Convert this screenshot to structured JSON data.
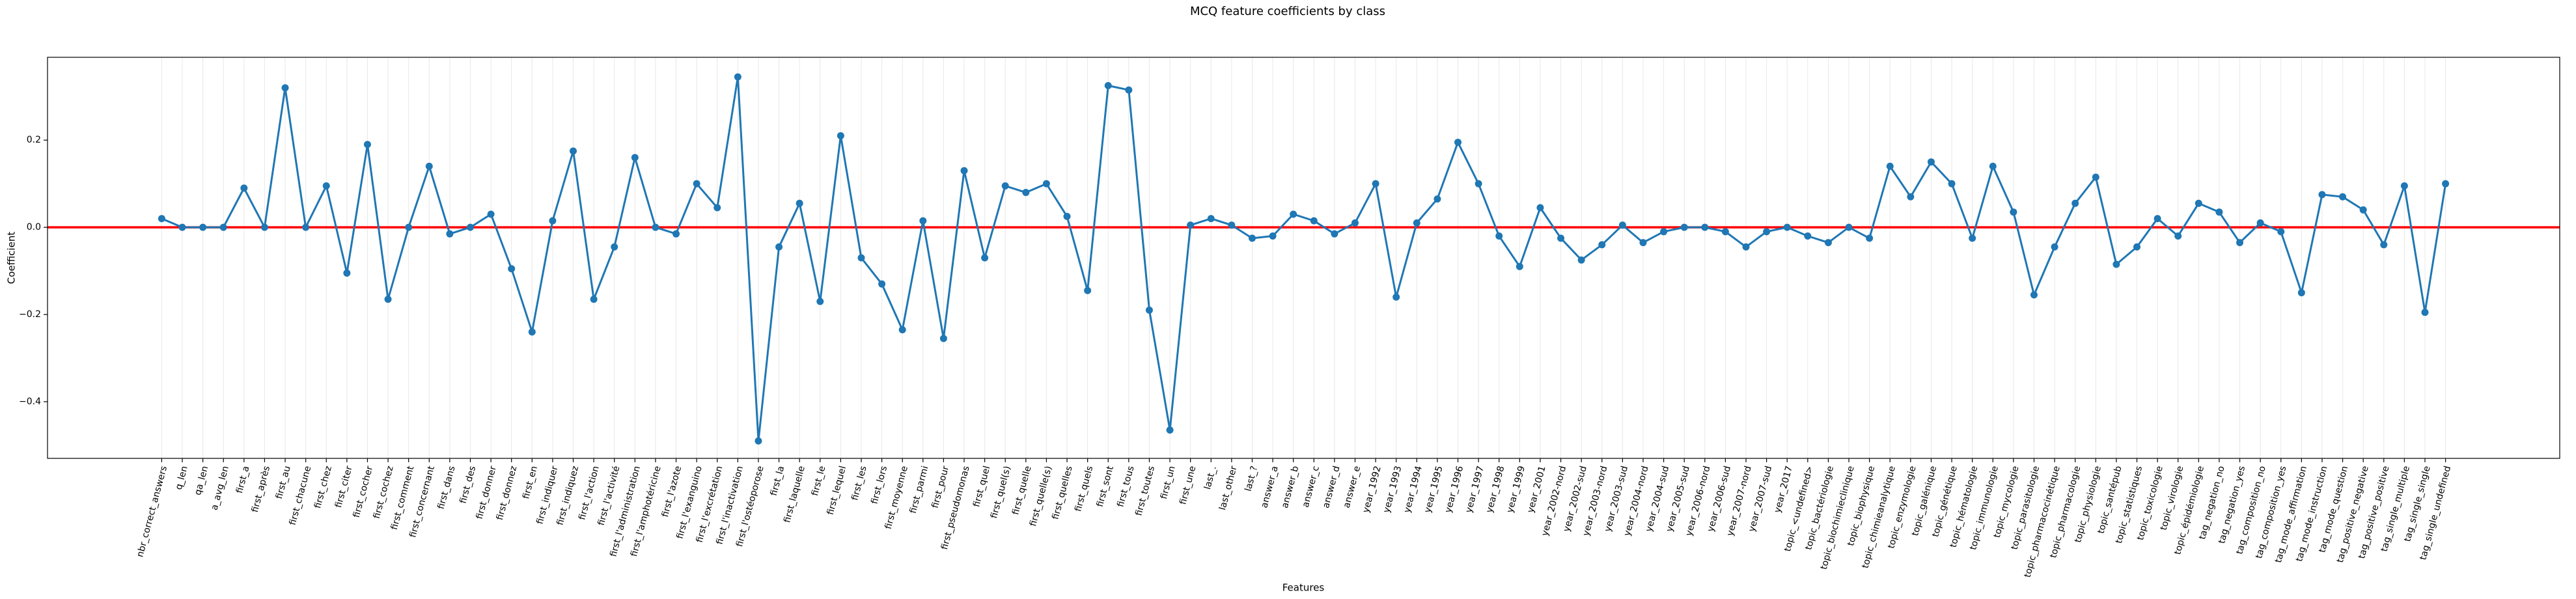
{
  "chart_data": {
    "type": "line",
    "title": "MCQ feature coefficients by class",
    "xlabel": "Features",
    "ylabel": "Coefficient",
    "categories": [
      "nbr_correct_answers",
      "q_len",
      "qa_len",
      "a_avg_len",
      "first_a",
      "first_après",
      "first_au",
      "first_chacune",
      "first_chez",
      "first_citer",
      "first_cocher",
      "first_cochez",
      "first_comment",
      "first_concernant",
      "first_dans",
      "first_des",
      "first_donner",
      "first_donnez",
      "first_en",
      "first_indiquer",
      "first_indiquez",
      "first_l'action",
      "first_l'activité",
      "first_l'administration",
      "first_l'amphotéricine",
      "first_l'azote",
      "first_l'exanguino",
      "first_l'excrétation",
      "first_l'inactivation",
      "first_l'ostéoporose",
      "first_la",
      "first_laquelle",
      "first_le",
      "first_lequel",
      "first_les",
      "first_lors",
      "first_moyenne",
      "first_parmi",
      "first_pour",
      "first_pseudomonas",
      "first_quel",
      "first_quel(s)",
      "first_quelle",
      "first_quelle(s)",
      "first_quelles",
      "first_quels",
      "first_sont",
      "first_tous",
      "first_toutes",
      "first_un",
      "first_une",
      "last_.",
      "last_other",
      "last_?",
      "answer_a",
      "answer_b",
      "answer_c",
      "answer_d",
      "answer_e",
      "year_1992",
      "year_1993",
      "year_1994",
      "year_1995",
      "year_1996",
      "year_1997",
      "year_1998",
      "year_1999",
      "year_2001",
      "year_2002-nord",
      "year_2002-sud",
      "year_2003-nord",
      "year_2003-sud",
      "year_2004-nord",
      "year_2004-sud",
      "year_2005-sud",
      "year_2006-nord",
      "year_2006-sud",
      "year_2007-nord",
      "year_2007-sud",
      "year_2017",
      "topic_<undefined>",
      "topic_bactériologie",
      "topic_biochimieclinique",
      "topic_biophysique",
      "topic_chimieanalytique",
      "topic_enzymologie",
      "topic_galénique",
      "topic_génétique",
      "topic_hématologie",
      "topic_immunologie",
      "topic_mycologie",
      "topic_parasitologie",
      "topic_pharmacocinétique",
      "topic_pharmacologie",
      "topic_physiologie",
      "topic_santépub",
      "topic_statistiques",
      "topic_toxicologie",
      "topic_virologie",
      "topic_épidémiologie",
      "tag_negation_no",
      "tag_negation_yes",
      "tag_composition_no",
      "tag_composition_yes",
      "tag_mode_affirmation",
      "tag_mode_instruction",
      "tag_mode_question",
      "tag_positive_negative",
      "tag_positive_positive",
      "tag_single_multiple",
      "tag_single_single",
      "tag_single_undefined"
    ],
    "values": [
      0.02,
      0,
      0,
      0,
      0.09,
      0,
      0.32,
      0,
      0.095,
      -0.105,
      0.19,
      -0.165,
      0,
      0.14,
      -0.015,
      0,
      0.03,
      -0.095,
      -0.24,
      0.015,
      0.175,
      -0.165,
      -0.045,
      0.16,
      0,
      -0.015,
      0.1,
      0.045,
      0.345,
      -0.49,
      -0.045,
      0.055,
      -0.17,
      0.21,
      -0.07,
      -0.13,
      -0.235,
      0.015,
      -0.255,
      0.13,
      -0.07,
      0.095,
      0.08,
      0.1,
      0.025,
      -0.145,
      0.325,
      0.315,
      -0.19,
      -0.465,
      0.005,
      0.02,
      0.005,
      -0.025,
      -0.02,
      0.03,
      0.015,
      -0.015,
      0.01,
      0.1,
      -0.16,
      0.01,
      0.065,
      0.195,
      0.1,
      -0.02,
      -0.09,
      0.045,
      -0.025,
      -0.075,
      -0.04,
      0.005,
      -0.035,
      -0.01,
      0,
      0,
      -0.01,
      -0.045,
      -0.01,
      0,
      -0.02,
      -0.035,
      0,
      -0.025,
      0.14,
      0.07,
      0.15,
      0.1,
      -0.025,
      0.14,
      0.035,
      -0.155,
      -0.045,
      0.055,
      0.115,
      -0.085,
      -0.045,
      0.02,
      -0.02,
      0.055,
      0.035,
      -0.035,
      0.01,
      -0.01,
      -0.15,
      0.075,
      0.07,
      0.04,
      -0.04,
      0.095,
      -0.195,
      0.1
    ],
    "color": "#1f77b4",
    "ylim": [
      -0.53,
      0.39
    ],
    "yticks": [
      {
        "value": -0.4,
        "label": "−0.4"
      },
      {
        "value": -0.2,
        "label": "−0.2"
      },
      {
        "value": 0,
        "label": "0.0"
      },
      0.2
    ],
    "xgrid": true,
    "hline": 0,
    "hline_color": "#ff0000"
  }
}
